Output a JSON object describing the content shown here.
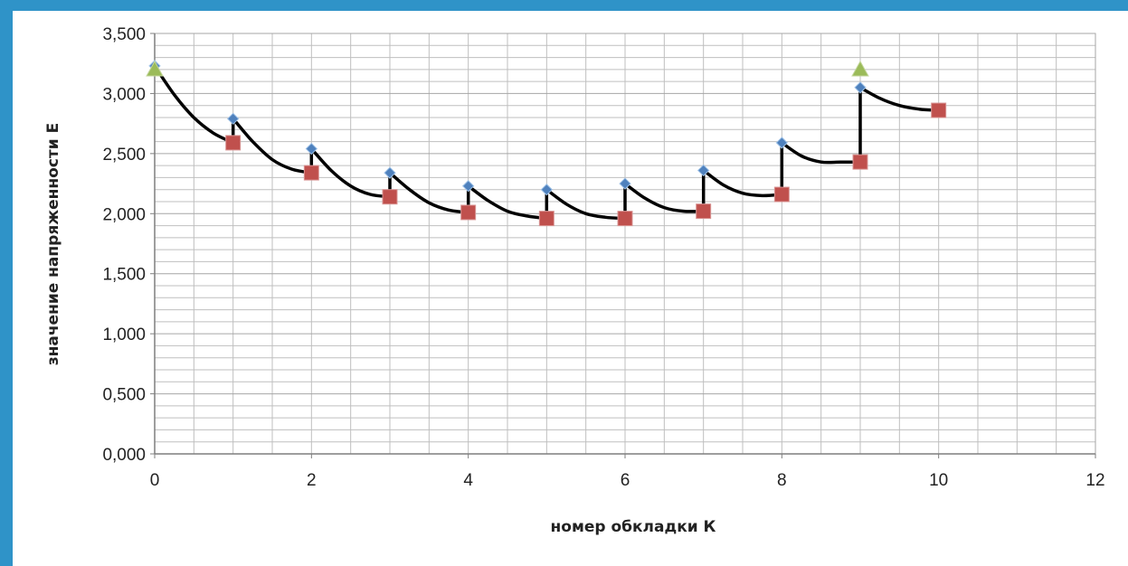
{
  "chart_data": {
    "type": "line",
    "xlabel": "номер обкладки К",
    "ylabel": "значение напряженности Е",
    "xlim": [
      0,
      12
    ],
    "ylim": [
      0,
      3.5
    ],
    "x_ticks": [
      "0",
      "2",
      "4",
      "6",
      "8",
      "10",
      "12"
    ],
    "y_ticks": [
      "0,000",
      "0,500",
      "1,000",
      "1,500",
      "2,000",
      "2,500",
      "3,000",
      "3,500"
    ],
    "grid": true,
    "legend": "none",
    "colors": {
      "line": "#000000",
      "diamond": "#4f81bd",
      "square": "#c0504d",
      "triangle": "#9bbb59",
      "grid": "#bfbfbf"
    },
    "series": [
      {
        "marker": "diamond",
        "x": [
          0,
          1,
          2,
          3,
          4,
          5,
          6,
          7,
          8,
          9
        ],
        "y": [
          3.23,
          2.79,
          2.54,
          2.34,
          2.23,
          2.2,
          2.25,
          2.36,
          2.59,
          3.05
        ]
      },
      {
        "marker": "square",
        "x": [
          1,
          2,
          3,
          4,
          5,
          6,
          7,
          8,
          9,
          10
        ],
        "y": [
          2.59,
          2.34,
          2.14,
          2.01,
          1.96,
          1.96,
          2.02,
          2.16,
          2.43,
          2.86
        ]
      },
      {
        "marker": "triangle",
        "x": [
          0,
          9
        ],
        "y": [
          3.2,
          3.2
        ]
      },
      {
        "marker": "none",
        "line": "curve",
        "points": [
          [
            0,
            3.23
          ],
          [
            0.25,
            2.99
          ],
          [
            0.5,
            2.8
          ],
          [
            0.75,
            2.67
          ],
          [
            1,
            2.59
          ],
          [
            1,
            2.79
          ],
          [
            1.25,
            2.6
          ],
          [
            1.5,
            2.45
          ],
          [
            1.75,
            2.37
          ],
          [
            2,
            2.34
          ],
          [
            2,
            2.54
          ],
          [
            2.25,
            2.36
          ],
          [
            2.5,
            2.23
          ],
          [
            2.75,
            2.16
          ],
          [
            3,
            2.14
          ],
          [
            3,
            2.34
          ],
          [
            3.25,
            2.2
          ],
          [
            3.5,
            2.09
          ],
          [
            3.75,
            2.03
          ],
          [
            4,
            2.01
          ],
          [
            4,
            2.23
          ],
          [
            4.25,
            2.11
          ],
          [
            4.5,
            2.02
          ],
          [
            4.75,
            1.98
          ],
          [
            5,
            1.96
          ],
          [
            5,
            2.2
          ],
          [
            5.25,
            2.08
          ],
          [
            5.5,
            2.0
          ],
          [
            5.75,
            1.97
          ],
          [
            6,
            1.96
          ],
          [
            6,
            2.25
          ],
          [
            6.25,
            2.13
          ],
          [
            6.5,
            2.05
          ],
          [
            6.75,
            2.02
          ],
          [
            7,
            2.02
          ],
          [
            7,
            2.36
          ],
          [
            7.25,
            2.24
          ],
          [
            7.5,
            2.17
          ],
          [
            7.75,
            2.15
          ],
          [
            8,
            2.16
          ],
          [
            8,
            2.59
          ],
          [
            8.25,
            2.48
          ],
          [
            8.5,
            2.43
          ],
          [
            8.75,
            2.43
          ],
          [
            9,
            2.43
          ],
          [
            9,
            3.05
          ],
          [
            9.25,
            2.96
          ],
          [
            9.5,
            2.9
          ],
          [
            9.75,
            2.87
          ],
          [
            10,
            2.86
          ]
        ]
      }
    ]
  }
}
